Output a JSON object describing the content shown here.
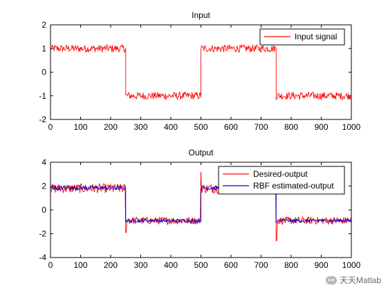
{
  "watermark": "天天Matlab",
  "chart_data": [
    {
      "type": "line",
      "title": "Input",
      "xlabel": "",
      "ylabel": "",
      "xlim": [
        0,
        1000
      ],
      "ylim": [
        -2,
        2
      ],
      "xticks": [
        "0",
        "100",
        "200",
        "300",
        "400",
        "500",
        "600",
        "700",
        "800",
        "900",
        "1000"
      ],
      "yticks": [
        "-2",
        "-1",
        "0",
        "1",
        "2"
      ],
      "legend_position": "top-right",
      "series": [
        {
          "name": "Input signal",
          "color": "#ff0000",
          "segments": [
            {
              "x": [
                0,
                250
              ],
              "level": 1.0,
              "noise": 0.1
            },
            {
              "x": [
                250,
                500
              ],
              "level": -1.0,
              "noise": 0.1
            },
            {
              "x": [
                500,
                750
              ],
              "level": 1.0,
              "noise": 0.1
            },
            {
              "x": [
                750,
                1000
              ],
              "level": -1.0,
              "noise": 0.1
            }
          ]
        }
      ]
    },
    {
      "type": "line",
      "title": "Output",
      "xlabel": "",
      "ylabel": "",
      "xlim": [
        0,
        1000
      ],
      "ylim": [
        -4,
        4
      ],
      "xticks": [
        "0",
        "100",
        "200",
        "300",
        "400",
        "500",
        "600",
        "700",
        "800",
        "900",
        "1000"
      ],
      "yticks": [
        "-4",
        "-2",
        "0",
        "2",
        "4"
      ],
      "legend_position": "top-right",
      "series": [
        {
          "name": "Desired-output",
          "color": "#ff0000",
          "segments": [
            {
              "x": [
                0,
                250
              ],
              "level": 1.8,
              "noise": 0.25
            },
            {
              "x": [
                250,
                500
              ],
              "level": -0.9,
              "noise": 0.2
            },
            {
              "x": [
                500,
                750
              ],
              "level": 1.8,
              "noise": 0.25
            },
            {
              "x": [
                750,
                1000
              ],
              "level": -0.9,
              "noise": 0.2
            }
          ],
          "spikes": [
            {
              "x": 251,
              "y": -1.9
            },
            {
              "x": 500,
              "y": 3.2
            },
            {
              "x": 751,
              "y": -2.6
            }
          ]
        },
        {
          "name": "RBF estimated-output",
          "color": "#0000cc",
          "segments": [
            {
              "x": [
                0,
                250
              ],
              "level": 1.85,
              "noise": 0.12
            },
            {
              "x": [
                250,
                500
              ],
              "level": -0.9,
              "noise": 0.1
            },
            {
              "x": [
                500,
                750
              ],
              "level": 1.85,
              "noise": 0.12
            },
            {
              "x": [
                750,
                1000
              ],
              "level": -0.9,
              "noise": 0.1
            }
          ]
        }
      ]
    }
  ]
}
